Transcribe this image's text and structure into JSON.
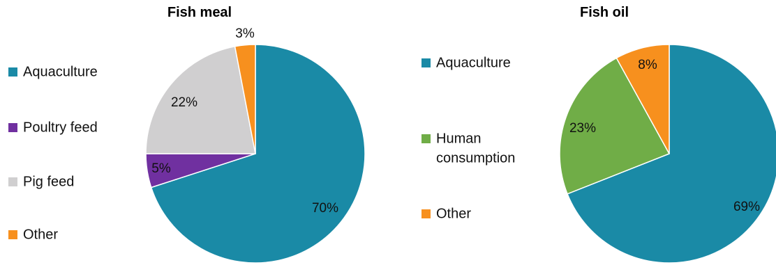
{
  "chart_data": [
    {
      "type": "pie",
      "title": "Fish meal",
      "legend_position": "left",
      "slices": [
        {
          "name": "Aquaculture",
          "value": 70,
          "label": "70%",
          "color": "#1a8aa6"
        },
        {
          "name": "Poultry feed",
          "value": 5,
          "label": "5%",
          "color": "#7030a0"
        },
        {
          "name": "Pig feed",
          "value": 22,
          "label": "22%",
          "color": "#d0cfd0"
        },
        {
          "name": "Other",
          "value": 3,
          "label": "3%",
          "color": "#f7901e"
        }
      ]
    },
    {
      "type": "pie",
      "title": "Fish oil",
      "legend_position": "left",
      "slices": [
        {
          "name": "Aquaculture",
          "value": 69,
          "label": "69%",
          "color": "#1a8aa6"
        },
        {
          "name": "Human consumption",
          "value": 23,
          "label": "23%",
          "color": "#70ad47",
          "legend_lines": [
            "Human",
            "consumption"
          ]
        },
        {
          "name": "Other",
          "value": 8,
          "label": "8%",
          "color": "#f7901e"
        }
      ]
    }
  ]
}
